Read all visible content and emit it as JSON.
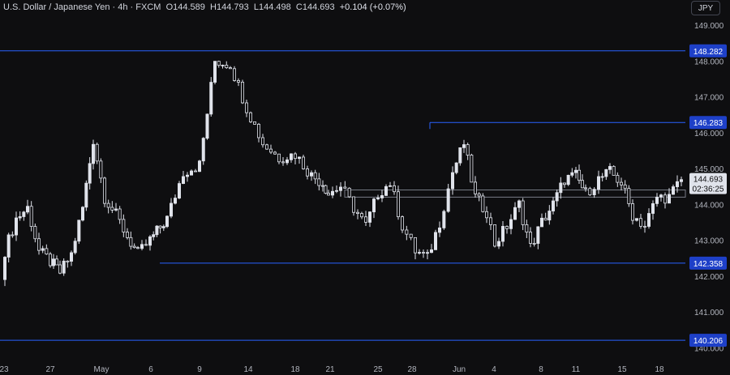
{
  "header": {
    "symbol": "U.S. Dollar / Japanese Yen · 4h · FXCM",
    "o_label": "O",
    "o": "144.589",
    "h_label": "H",
    "h": "144.793",
    "l_label": "L",
    "l": "144.498",
    "c_label": "C",
    "c": "144.693",
    "change": "+0.104 (+0.07%)"
  },
  "currency_button": "JPY",
  "colors": {
    "background": "#0e0e10",
    "candle": "#e0e3eb",
    "level_line": "#2962ff",
    "level_label_bg": "#1e40c8",
    "zone": "#787b86",
    "price_label_bg": "#e0e3eb",
    "tick_text": "#b2b5be"
  },
  "chart_data": {
    "type": "candlestick",
    "y_axis": {
      "ticks": [
        "149.000",
        "148.000",
        "147.000",
        "146.000",
        "145.000",
        "144.000",
        "143.000",
        "142.000",
        "141.000",
        "140.000"
      ],
      "range": [
        139.9,
        149.5
      ]
    },
    "x_axis": {
      "ticks": [
        "23",
        "27",
        "May",
        "6",
        "9",
        "14",
        "18",
        "21",
        "25",
        "28",
        "Jun",
        "4",
        "8",
        "11",
        "15",
        "18"
      ]
    },
    "horizontal_levels": [
      {
        "value": 148.282,
        "label": "148.282",
        "span": "full"
      },
      {
        "value": 146.283,
        "label": "146.283",
        "span": "from May 28"
      },
      {
        "value": 142.358,
        "label": "142.358",
        "span": "from May 6"
      },
      {
        "value": 140.206,
        "label": "140.206",
        "span": "full"
      }
    ],
    "zone": {
      "from": 144.2,
      "to": 144.4,
      "start": "May 22"
    },
    "current_price": {
      "value": 144.693,
      "label": "144.693",
      "countdown": "02:36:25"
    },
    "close_path": [
      [
        "Apr 22",
        141.9
      ],
      [
        "Apr 23",
        142.7
      ],
      [
        "Apr 24",
        143.6
      ],
      [
        "Apr 25",
        143.9
      ],
      [
        "Apr 26",
        142.7
      ],
      [
        "Apr 27",
        142.4
      ],
      [
        "Apr 28",
        142.1
      ],
      [
        "Apr 29",
        142.6
      ],
      [
        "Apr 30",
        143.9
      ],
      [
        "May 1",
        145.8
      ],
      [
        "May 2",
        144.2
      ],
      [
        "May 3",
        143.7
      ],
      [
        "May 4",
        143.1
      ],
      [
        "May 5",
        142.6
      ],
      [
        "May 6",
        143.0
      ],
      [
        "May 7",
        143.6
      ],
      [
        "May 8",
        144.9
      ],
      [
        "May 9",
        145.1
      ],
      [
        "May 10",
        148.0
      ],
      [
        "May 11",
        147.9
      ],
      [
        "May 12",
        146.7
      ],
      [
        "May 13",
        145.7
      ],
      [
        "May 14",
        145.3
      ],
      [
        "May 15",
        145.4
      ],
      [
        "May 16",
        144.8
      ],
      [
        "May 17",
        144.6
      ],
      [
        "May 18",
        144.3
      ],
      [
        "May 19",
        144.5
      ],
      [
        "May 20",
        143.9
      ],
      [
        "May 21",
        143.4
      ],
      [
        "May 22",
        144.3
      ],
      [
        "May 23",
        144.6
      ],
      [
        "May 24",
        143.4
      ],
      [
        "May 25",
        142.7
      ],
      [
        "May 26",
        142.5
      ],
      [
        "May 27",
        143.5
      ],
      [
        "May 28",
        144.9
      ],
      [
        "May 29",
        145.7
      ],
      [
        "May 30",
        144.2
      ],
      [
        "May 31",
        143.8
      ],
      [
        "Jun 1",
        142.9
      ],
      [
        "Jun 2",
        143.4
      ],
      [
        "Jun 3",
        144.0
      ],
      [
        "Jun 4",
        142.8
      ],
      [
        "Jun 5",
        143.5
      ],
      [
        "Jun 6",
        144.0
      ],
      [
        "Jun 7",
        144.7
      ],
      [
        "Jun 8",
        144.8
      ],
      [
        "Jun 9",
        144.3
      ],
      [
        "Jun 10",
        144.7
      ],
      [
        "Jun 11",
        144.9
      ],
      [
        "Jun 12",
        144.6
      ],
      [
        "Jun 13",
        143.7
      ],
      [
        "Jun 14",
        143.4
      ],
      [
        "Jun 15",
        144.2
      ],
      [
        "Jun 16",
        144.2
      ],
      [
        "Jun 17",
        144.69
      ]
    ]
  }
}
